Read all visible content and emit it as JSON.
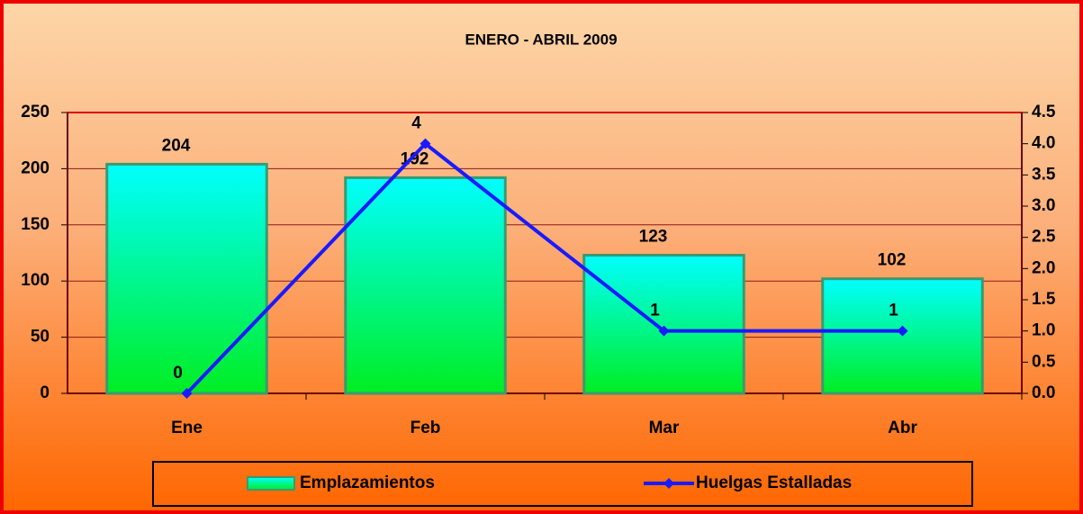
{
  "chart_data": {
    "type": "bar",
    "title": "ENERO - ABRIL 2009",
    "categories": [
      "Ene",
      "Feb",
      "Mar",
      "Abr"
    ],
    "series": [
      {
        "name": "Emplazamientos",
        "type": "bar",
        "color": "#00ffcc",
        "values": [
          204,
          192,
          123,
          102
        ]
      },
      {
        "name": "Huelgas Estalladas",
        "type": "line",
        "axis": "y2",
        "color": "#1a1aff",
        "values": [
          0,
          4,
          1,
          1
        ]
      }
    ],
    "ylim": [
      0,
      250
    ],
    "yticks": [
      0,
      50,
      100,
      150,
      200,
      250
    ],
    "y2lim": [
      0,
      4.5
    ],
    "y2ticks": [
      {
        "value": 0,
        "label": "0.0"
      },
      0.5,
      {
        "value": 1,
        "label": "1.0"
      },
      1.5,
      {
        "value": 2,
        "label": "2.0"
      },
      2.5,
      {
        "value": 3,
        "label": "3.0"
      },
      3.5,
      {
        "value": 4,
        "label": "4.0"
      },
      4.5
    ],
    "grid": true,
    "legend": "bottom"
  }
}
